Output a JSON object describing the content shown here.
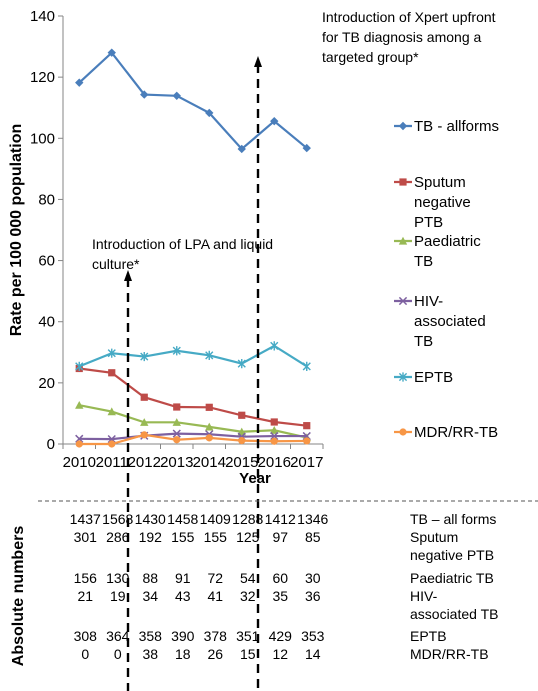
{
  "chart_data": {
    "type": "line",
    "xlabel": "Year",
    "ylabel": "Rate per 100 000 population",
    "ylim": [
      0,
      140
    ],
    "yticks": [
      0,
      20,
      40,
      60,
      80,
      100,
      120,
      140
    ],
    "categories": [
      "2010",
      "2011",
      "2012",
      "2013",
      "2014",
      "2015",
      "2016",
      "2017"
    ],
    "grid": false,
    "legend_position": "right",
    "series": [
      {
        "name": "TB - allforms",
        "legend_lines": [
          "TB - allforms"
        ],
        "color": "#4a7ebb",
        "marker": "diamond",
        "values": [
          118.2,
          128,
          114.3,
          113.9,
          108.3,
          96.5,
          105.6,
          96.8
        ]
      },
      {
        "name": "Sputum negative PTB",
        "legend_lines": [
          "Sputum",
          "negative",
          "PTB"
        ],
        "color": "#be4b48",
        "marker": "square",
        "values": [
          24.7,
          23.3,
          15.3,
          12.1,
          12,
          9.4,
          7.2,
          6
        ]
      },
      {
        "name": "Paediatric TB",
        "legend_lines": [
          "Paediatric",
          "TB"
        ],
        "color": "#98b954",
        "marker": "triangle",
        "values": [
          12.7,
          10.6,
          7.1,
          7.1,
          5.6,
          4,
          4.5,
          2.1
        ]
      },
      {
        "name": "HIV-associated TB",
        "legend_lines": [
          "HIV-",
          "associated",
          "TB"
        ],
        "color": "#7d60a0",
        "marker": "x",
        "values": [
          1.7,
          1.6,
          2.7,
          3.4,
          3.2,
          2.4,
          2.6,
          2.6
        ]
      },
      {
        "name": "EPTB",
        "legend_lines": [
          "EPTB"
        ],
        "color": "#46aac5",
        "marker": "star",
        "values": [
          25.4,
          29.7,
          28.6,
          30.5,
          29,
          26.3,
          32.1,
          25.4
        ]
      },
      {
        "name": "MDR/RR-TB",
        "legend_lines": [
          "MDR/RR-TB"
        ],
        "color": "#f79646",
        "marker": "circle",
        "values": [
          0,
          0,
          3,
          1.4,
          2,
          1.1,
          0.9,
          1
        ]
      }
    ],
    "annotations": [
      {
        "name": "lpa",
        "lines": [
          "Introduction of LPA and liquid",
          "culture*"
        ],
        "after_index": 1
      },
      {
        "name": "xpert",
        "lines": [
          "Introduction of Xpert upfront",
          "for TB diagnosis among a",
          "targeted group*"
        ],
        "after_index": 5
      }
    ],
    "table": {
      "side_label": "Absolute numbers",
      "rows": [
        {
          "values": [
            "1437",
            "1568",
            "1430",
            "1458",
            "1409",
            "1288",
            "1412",
            "1346"
          ],
          "label_lines": [
            "TB – all forms"
          ]
        },
        {
          "values": [
            "301",
            "286",
            "192",
            "155",
            "155",
            "125",
            "97",
            "85"
          ],
          "label_lines": [
            "Sputum",
            "negative PTB"
          ]
        },
        {
          "values": [
            "156",
            "130",
            "88",
            "91",
            "72",
            "54",
            "60",
            "30"
          ],
          "label_lines": [
            "Paediatric TB"
          ]
        },
        {
          "values": [
            "21",
            "19",
            "34",
            "43",
            "41",
            "32",
            "35",
            "36"
          ],
          "label_lines": [
            "HIV-",
            "associated TB"
          ]
        },
        {
          "values": [
            "308",
            "364",
            "358",
            "390",
            "378",
            "351",
            "429",
            "353"
          ],
          "label_lines": [
            "EPTB"
          ]
        },
        {
          "values": [
            "0",
            "0",
            "38",
            "18",
            "26",
            "15",
            "12",
            "14"
          ],
          "label_lines": [
            "MDR/RR-TB"
          ]
        }
      ]
    }
  }
}
